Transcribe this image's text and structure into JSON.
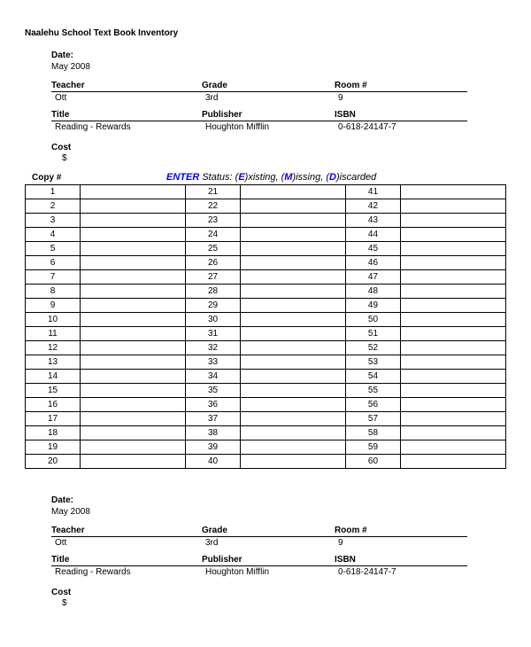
{
  "title": "Naalehu School Text Book Inventory",
  "block1": {
    "date_label": "Date:",
    "date_value": "May 2008",
    "teacher_label": "Teacher",
    "teacher_value": "Ott",
    "grade_label": "Grade",
    "grade_value": "3rd",
    "room_label": "Room #",
    "room_value": "9",
    "title_label": "Title",
    "title_value": "Reading - Rewards",
    "publisher_label": "Publisher",
    "publisher_value": "Houghton Mifflin",
    "isbn_label": "ISBN",
    "isbn_value": "0-618-24147-7",
    "cost_label": "Cost",
    "cost_value": "$"
  },
  "copy_label": "Copy #",
  "enter_label": "ENTER",
  "status_text_1": " Status: (",
  "status_E": "E",
  "status_text_2": ")xisting, (",
  "status_M": "M",
  "status_text_3": ")issing, (",
  "status_D": "D",
  "status_text_4": ")iscarded",
  "rows": [
    [
      "1",
      "21",
      "41"
    ],
    [
      "2",
      "22",
      "42"
    ],
    [
      "3",
      "23",
      "43"
    ],
    [
      "4",
      "24",
      "44"
    ],
    [
      "5",
      "25",
      "45"
    ],
    [
      "6",
      "26",
      "46"
    ],
    [
      "7",
      "27",
      "47"
    ],
    [
      "8",
      "28",
      "48"
    ],
    [
      "9",
      "29",
      "49"
    ],
    [
      "10",
      "30",
      "50"
    ],
    [
      "11",
      "31",
      "51"
    ],
    [
      "12",
      "32",
      "52"
    ],
    [
      "13",
      "33",
      "53"
    ],
    [
      "14",
      "34",
      "54"
    ],
    [
      "15",
      "35",
      "55"
    ],
    [
      "16",
      "36",
      "56"
    ],
    [
      "17",
      "37",
      "57"
    ],
    [
      "18",
      "38",
      "58"
    ],
    [
      "19",
      "39",
      "59"
    ],
    [
      "20",
      "40",
      "60"
    ]
  ],
  "block2": {
    "date_label": "Date:",
    "date_value": "May 2008",
    "teacher_label": "Teacher",
    "teacher_value": "Ott",
    "grade_label": "Grade",
    "grade_value": "3rd",
    "room_label": "Room #",
    "room_value": "9",
    "title_label": "Title",
    "title_value": "Reading - Rewards",
    "publisher_label": "Publisher",
    "publisher_value": "Houghton Mifflin",
    "isbn_label": "ISBN",
    "isbn_value": "0-618-24147-7",
    "cost_label": "Cost",
    "cost_value": "$"
  }
}
